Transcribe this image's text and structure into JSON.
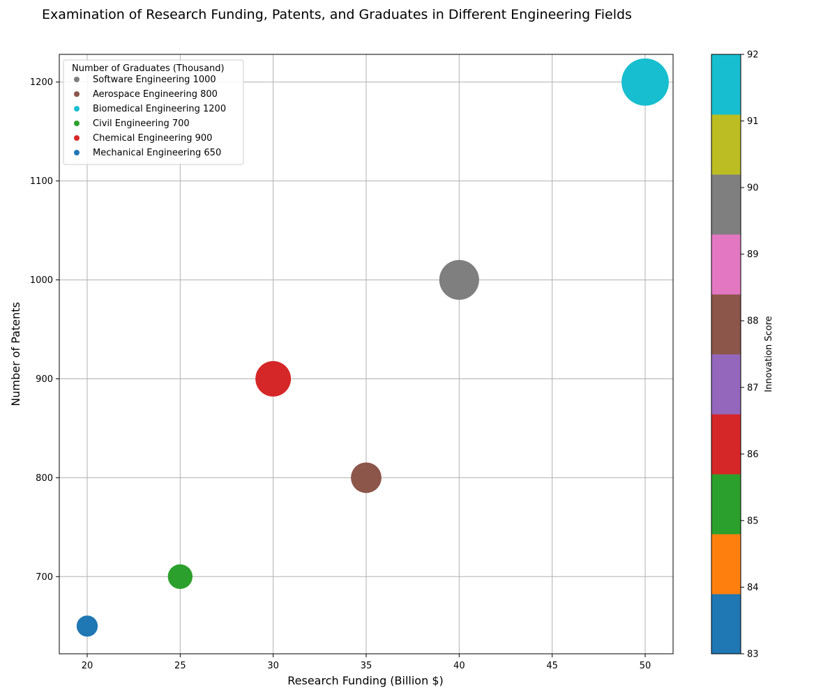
{
  "chart_data": {
    "type": "scatter",
    "title": "Examination of Research Funding, Patents, and Graduates in Different Engineering Fields",
    "xlabel": "Research Funding (Billion $)",
    "ylabel": "Number of Patents",
    "xlim": [
      18.5,
      51.5
    ],
    "ylim": [
      622,
      1228
    ],
    "xticks": [
      20,
      25,
      30,
      35,
      40,
      45,
      50
    ],
    "yticks": [
      700,
      800,
      900,
      1000,
      1100,
      1200
    ],
    "grid": true,
    "legend": {
      "title": "Number of Graduates (Thousand)",
      "placement": "top-left"
    },
    "bubble_size_by": "Number of Graduates (Thousand)",
    "points": [
      {
        "label": " Software Engineering 1000",
        "x": 40,
        "y": 1000,
        "graduates": 1000,
        "innovation": 90,
        "color": "#7f7f7f"
      },
      {
        "label": " Aerospace Engineering 800",
        "x": 35,
        "y": 800,
        "graduates": 800,
        "innovation": 88,
        "color": "#8c564b"
      },
      {
        "label": " Biomedical Engineering 1200",
        "x": 50,
        "y": 1200,
        "graduates": 1200,
        "innovation": 92,
        "color": "#17becf"
      },
      {
        "label": " Civil Engineering 700",
        "x": 25,
        "y": 700,
        "graduates": 700,
        "innovation": 85,
        "color": "#2ca02c"
      },
      {
        "label": " Chemical Engineering 900",
        "x": 30,
        "y": 900,
        "graduates": 900,
        "innovation": 86,
        "color": "#d62728"
      },
      {
        "label": " Mechanical Engineering 650",
        "x": 20,
        "y": 650,
        "graduates": 650,
        "innovation": 83,
        "color": "#1f77b4"
      }
    ],
    "colorbar": {
      "label": "Innovation Score",
      "min": 83,
      "max": 92,
      "ticks": [
        83,
        84,
        85,
        86,
        87,
        88,
        89,
        90,
        91,
        92
      ],
      "colors": [
        "#1f77b4",
        "#ff7f0e",
        "#2ca02c",
        "#d62728",
        "#9467bd",
        "#8c564b",
        "#e377c2",
        "#7f7f7f",
        "#bcbd22",
        "#17becf"
      ]
    }
  }
}
